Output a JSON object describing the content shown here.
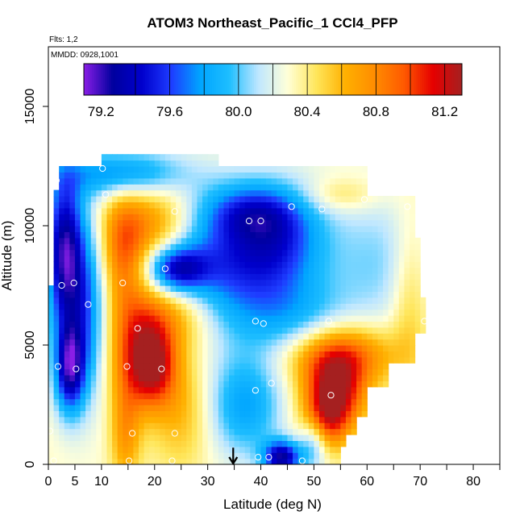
{
  "chart_data": {
    "type": "heatmap",
    "title": "ATOM3 Northeast_Pacific_1 CCl4_PFP",
    "flights_label": "Flts: 1,2",
    "dates_label": "MMDD: 0928,1001",
    "xlabel": "Latitude (deg N)",
    "ylabel": "Altitude (m)",
    "xlim": [
      0,
      85
    ],
    "ylim": [
      0,
      17500
    ],
    "x_ticks": [
      0,
      5,
      10,
      20,
      30,
      40,
      50,
      60,
      70,
      80
    ],
    "x_tick_labels": [
      "0",
      "5",
      "10",
      "20",
      "30",
      "40",
      "50",
      "60",
      "70",
      "80"
    ],
    "x_minor_ticks": [
      15,
      25,
      35,
      45,
      55,
      65,
      75,
      85
    ],
    "y_ticks": [
      0,
      5000,
      10000,
      15000
    ],
    "y_tick_labels": [
      "0",
      "5000",
      "10000",
      "15000"
    ],
    "colorbar": {
      "min": 79.1,
      "max": 81.3,
      "ticks": [
        79.2,
        79.6,
        80.0,
        80.4,
        80.8,
        81.2
      ],
      "tick_labels": [
        "79.2",
        "79.6",
        "80.0",
        "80.4",
        "80.8",
        "81.2"
      ],
      "divisions": [
        79.4,
        79.6,
        79.8,
        80.0,
        80.2,
        80.4,
        80.6,
        80.8,
        81.0,
        81.2
      ],
      "colors": [
        "#8a1ee6",
        "#00009e",
        "#0000cd",
        "#1e3cff",
        "#00a5ff",
        "#1ebeff",
        "#bfe7ff",
        "#ffffd8",
        "#ffe65a",
        "#ffb000",
        "#ff8c00",
        "#ff5a00",
        "#e60000",
        "#a52020"
      ]
    },
    "field": {
      "lat_range": [
        0,
        72
      ],
      "alt_range": [
        0,
        13000
      ],
      "background_value": 80.3,
      "features": [
        {
          "lat": 3,
          "alt": 9000,
          "value": 79.3,
          "sx": 2.5,
          "sy": 2300
        },
        {
          "lat": 4,
          "alt": 4000,
          "value": 79.4,
          "sx": 2,
          "sy": 1300
        },
        {
          "lat": 7,
          "alt": 6500,
          "value": 79.7,
          "sx": 3,
          "sy": 2500
        },
        {
          "lat": 14,
          "alt": 9000,
          "value": 80.85,
          "sx": 3,
          "sy": 1700
        },
        {
          "lat": 16,
          "alt": 4500,
          "value": 80.85,
          "sx": 3.5,
          "sy": 1600
        },
        {
          "lat": 20,
          "alt": 4200,
          "value": 81.05,
          "sx": 3,
          "sy": 1200
        },
        {
          "lat": 22,
          "alt": 6300,
          "value": 80.75,
          "sx": 6,
          "sy": 1100
        },
        {
          "lat": 20,
          "alt": 10000,
          "value": 80.75,
          "sx": 5,
          "sy": 1300
        },
        {
          "lat": 14.5,
          "alt": 1200,
          "value": 80.7,
          "sx": 2,
          "sy": 1500
        },
        {
          "lat": 25,
          "alt": 2300,
          "value": 80.6,
          "sx": 4,
          "sy": 1800
        },
        {
          "lat": 24,
          "alt": 8200,
          "value": 79.45,
          "sx": 4,
          "sy": 700
        },
        {
          "lat": 34,
          "alt": 8500,
          "value": 79.65,
          "sx": 8,
          "sy": 2000
        },
        {
          "lat": 14,
          "alt": 12200,
          "value": 79.7,
          "sx": 8,
          "sy": 700
        },
        {
          "lat": 37,
          "alt": 2500,
          "value": 79.8,
          "sx": 5,
          "sy": 1500
        },
        {
          "lat": 44,
          "alt": 300,
          "value": 79.3,
          "sx": 2.5,
          "sy": 500
        },
        {
          "lat": 50,
          "alt": 1000,
          "value": 79.8,
          "sx": 2,
          "sy": 800
        },
        {
          "lat": 54,
          "alt": 3000,
          "value": 81.2,
          "sx": 4,
          "sy": 1100
        },
        {
          "lat": 55,
          "alt": 4600,
          "value": 80.95,
          "sx": 7,
          "sy": 900
        },
        {
          "lat": 52,
          "alt": 1700,
          "value": 80.85,
          "sx": 3,
          "sy": 900
        },
        {
          "lat": 46,
          "alt": 6200,
          "value": 79.95,
          "sx": 7,
          "sy": 1200
        },
        {
          "lat": 44,
          "alt": 9500,
          "value": 79.75,
          "sx": 6,
          "sy": 1500
        },
        {
          "lat": 38,
          "alt": 10600,
          "value": 79.9,
          "sx": 6,
          "sy": 800
        },
        {
          "lat": 62,
          "alt": 8500,
          "value": 80.05,
          "sx": 7,
          "sy": 2000
        },
        {
          "lat": 68,
          "alt": 7000,
          "value": 80.55,
          "sx": 2.5,
          "sy": 2500
        },
        {
          "lat": 55,
          "alt": 11300,
          "value": 80.5,
          "sx": 5,
          "sy": 500
        }
      ]
    },
    "flight_track_markers": [
      {
        "lat": 1.0,
        "alt": 150
      },
      {
        "lat": 0.3,
        "alt": 1400
      },
      {
        "lat": 1.8,
        "alt": 4100
      },
      {
        "lat": 2.5,
        "alt": 7500
      },
      {
        "lat": 1.5,
        "alt": 11900
      },
      {
        "lat": 4.8,
        "alt": 7600
      },
      {
        "lat": 5.2,
        "alt": 4000
      },
      {
        "lat": 7.5,
        "alt": 6700
      },
      {
        "lat": 10.2,
        "alt": 12400
      },
      {
        "lat": 10.8,
        "alt": 11300
      },
      {
        "lat": 14.0,
        "alt": 7600
      },
      {
        "lat": 14.8,
        "alt": 4100
      },
      {
        "lat": 15.8,
        "alt": 1300
      },
      {
        "lat": 15.2,
        "alt": 150
      },
      {
        "lat": 16.8,
        "alt": 5700
      },
      {
        "lat": 22.0,
        "alt": 8200
      },
      {
        "lat": 21.3,
        "alt": 4000
      },
      {
        "lat": 23.8,
        "alt": 1300
      },
      {
        "lat": 23.3,
        "alt": 150
      },
      {
        "lat": 23.8,
        "alt": 10600
      },
      {
        "lat": 37.8,
        "alt": 10200
      },
      {
        "lat": 40.0,
        "alt": 10200
      },
      {
        "lat": 39.0,
        "alt": 6000
      },
      {
        "lat": 40.5,
        "alt": 5900
      },
      {
        "lat": 39.0,
        "alt": 3100
      },
      {
        "lat": 42.0,
        "alt": 3400
      },
      {
        "lat": 39.5,
        "alt": 300
      },
      {
        "lat": 41.5,
        "alt": 300
      },
      {
        "lat": 45.8,
        "alt": 10800
      },
      {
        "lat": 51.5,
        "alt": 10700
      },
      {
        "lat": 52.8,
        "alt": 6000
      },
      {
        "lat": 53.2,
        "alt": 2900
      },
      {
        "lat": 47.8,
        "alt": 150
      },
      {
        "lat": 59.5,
        "alt": 11100
      },
      {
        "lat": 70.8,
        "alt": 6000
      },
      {
        "lat": 67.6,
        "alt": 10800
      }
    ],
    "arrow_marker": {
      "lat": 34.8,
      "alt_top": 700,
      "alt_bottom": 0
    }
  }
}
